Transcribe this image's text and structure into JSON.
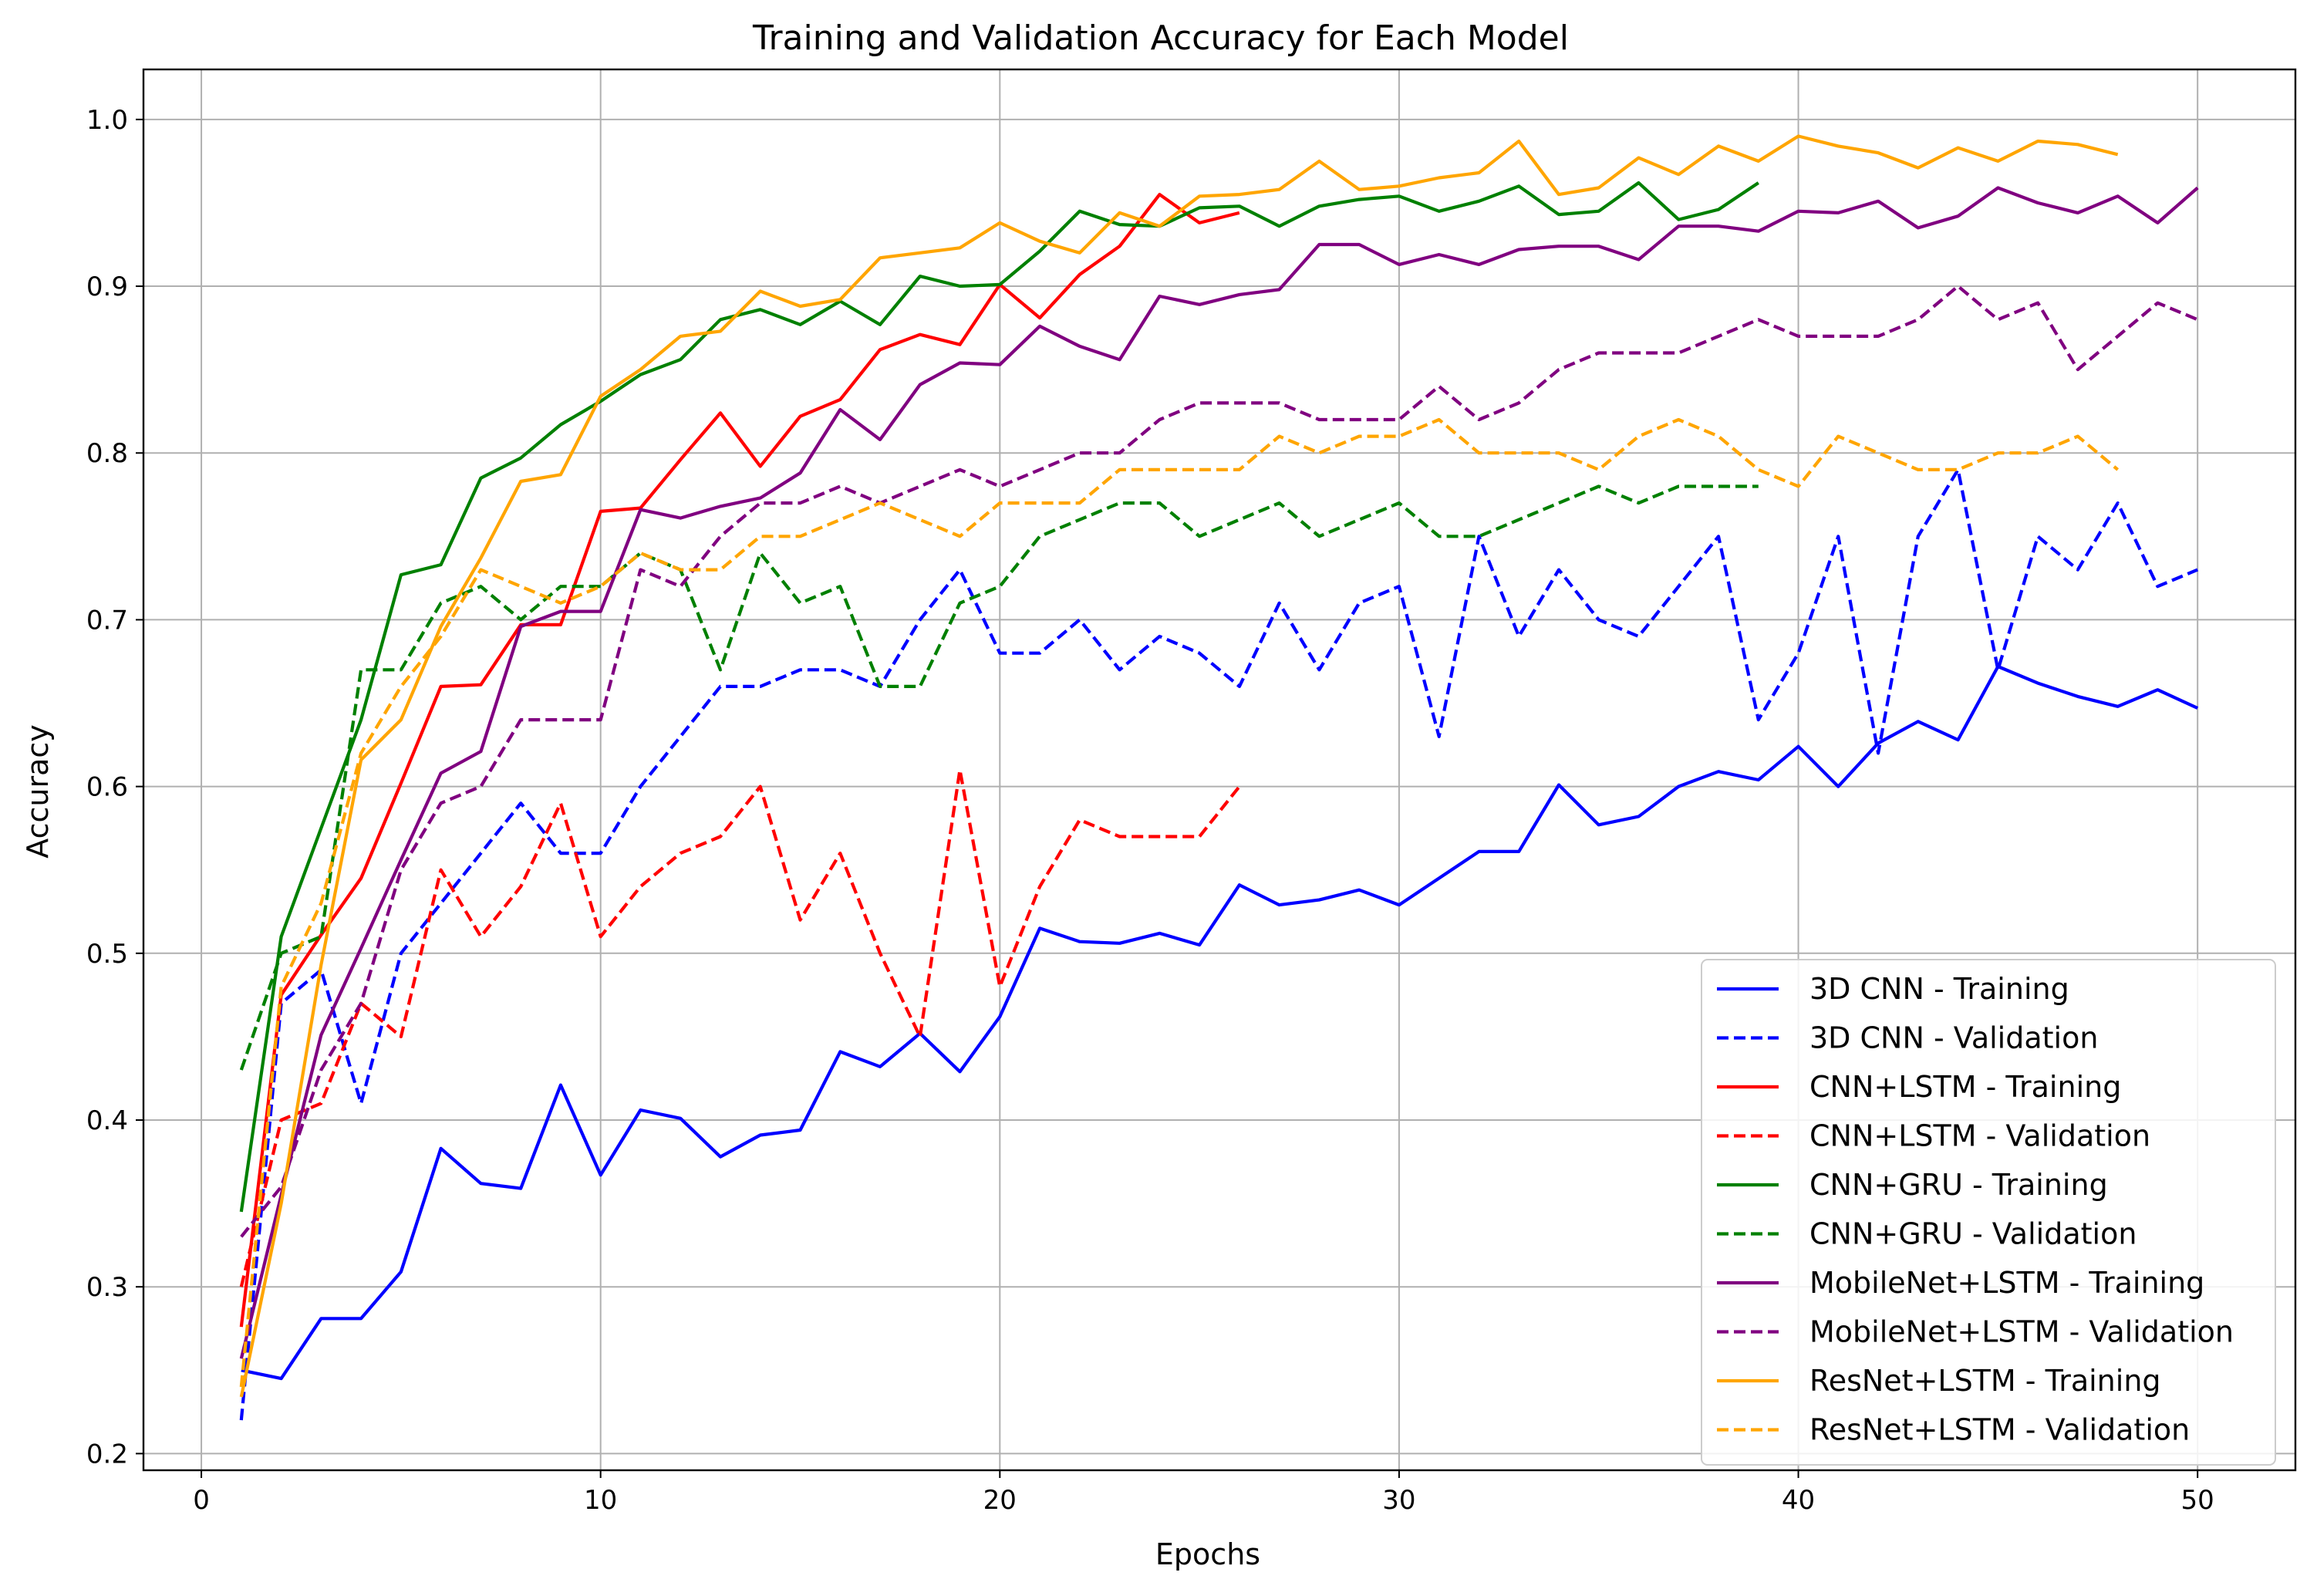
{
  "chart_data": {
    "type": "line",
    "title": "Training and Validation Accuracy for Each Model",
    "xlabel": "Epochs",
    "ylabel": "Accuracy",
    "xlim": [
      -1.45,
      52.45
    ],
    "ylim": [
      0.19,
      1.03
    ],
    "xticks": [
      0,
      10,
      20,
      30,
      40,
      50
    ],
    "yticks": [
      0.2,
      0.3,
      0.4,
      0.5,
      0.6,
      0.7,
      0.8,
      0.9,
      1.0
    ],
    "xtick_labels": [
      "0",
      "10",
      "20",
      "30",
      "40",
      "50"
    ],
    "ytick_labels": [
      "0.2",
      "0.3",
      "0.4",
      "0.5",
      "0.6",
      "0.7",
      "0.8",
      "0.9",
      "1.0"
    ],
    "grid": true,
    "legend_position": "lower-right",
    "series": [
      {
        "name": "3D CNN - Training",
        "color": "#0000ff",
        "style": "solid",
        "values": [
          0.25,
          0.245,
          0.281,
          0.281,
          0.309,
          0.383,
          0.362,
          0.359,
          0.421,
          0.367,
          0.406,
          0.401,
          0.378,
          0.391,
          0.394,
          0.441,
          0.432,
          0.452,
          0.429,
          0.462,
          0.515,
          0.507,
          0.506,
          0.512,
          0.505,
          0.541,
          0.529,
          0.532,
          0.538,
          0.529,
          0.545,
          0.561,
          0.561,
          0.601,
          0.577,
          0.582,
          0.6,
          0.609,
          0.604,
          0.624,
          0.6,
          0.626,
          0.639,
          0.628,
          0.672,
          0.662,
          0.654,
          0.648,
          0.658,
          0.647
        ]
      },
      {
        "name": "3D CNN - Validation",
        "color": "#0000ff",
        "style": "dashed",
        "values": [
          0.22,
          0.47,
          0.49,
          0.41,
          0.5,
          0.53,
          0.56,
          0.59,
          0.56,
          0.56,
          0.6,
          0.63,
          0.66,
          0.66,
          0.67,
          0.67,
          0.66,
          0.7,
          0.73,
          0.68,
          0.68,
          0.7,
          0.67,
          0.69,
          0.68,
          0.66,
          0.71,
          0.67,
          0.71,
          0.72,
          0.63,
          0.75,
          0.69,
          0.73,
          0.7,
          0.69,
          0.72,
          0.75,
          0.64,
          0.68,
          0.75,
          0.62,
          0.75,
          0.79,
          0.67,
          0.75,
          0.73,
          0.77,
          0.72,
          0.73
        ]
      },
      {
        "name": "CNN+LSTM - Training",
        "color": "#ff0000",
        "style": "solid",
        "values": [
          0.276,
          0.475,
          0.511,
          0.545,
          0.602,
          0.66,
          0.661,
          0.697,
          0.697,
          0.765,
          0.767,
          0.796,
          0.824,
          0.792,
          0.822,
          0.832,
          0.862,
          0.871,
          0.865,
          0.901,
          0.881,
          0.907,
          0.924,
          0.955,
          0.938,
          0.944
        ]
      },
      {
        "name": "CNN+LSTM - Validation",
        "color": "#ff0000",
        "style": "dashed",
        "values": [
          0.3,
          0.4,
          0.41,
          0.47,
          0.45,
          0.55,
          0.51,
          0.54,
          0.59,
          0.51,
          0.54,
          0.56,
          0.57,
          0.6,
          0.52,
          0.56,
          0.5,
          0.45,
          0.61,
          0.48,
          0.54,
          0.58,
          0.57,
          0.57,
          0.57,
          0.6
        ]
      },
      {
        "name": "CNN+GRU - Training",
        "color": "#008000",
        "style": "solid",
        "values": [
          0.345,
          0.51,
          0.575,
          0.64,
          0.727,
          0.733,
          0.785,
          0.797,
          0.817,
          0.831,
          0.847,
          0.856,
          0.88,
          0.886,
          0.877,
          0.891,
          0.877,
          0.906,
          0.9,
          0.901,
          0.921,
          0.945,
          0.937,
          0.936,
          0.947,
          0.948,
          0.936,
          0.948,
          0.952,
          0.954,
          0.945,
          0.951,
          0.96,
          0.943,
          0.945,
          0.962,
          0.94,
          0.946,
          0.962
        ]
      },
      {
        "name": "CNN+GRU - Validation",
        "color": "#008000",
        "style": "dashed",
        "values": [
          0.43,
          0.5,
          0.51,
          0.67,
          0.67,
          0.71,
          0.72,
          0.7,
          0.72,
          0.72,
          0.74,
          0.73,
          0.67,
          0.74,
          0.71,
          0.72,
          0.66,
          0.66,
          0.71,
          0.72,
          0.75,
          0.76,
          0.77,
          0.77,
          0.75,
          0.76,
          0.77,
          0.75,
          0.76,
          0.77,
          0.75,
          0.75,
          0.76,
          0.77,
          0.78,
          0.77,
          0.78,
          0.78,
          0.78
        ]
      },
      {
        "name": "MobileNet+LSTM - Training",
        "color": "#800080",
        "style": "solid",
        "values": [
          0.257,
          0.355,
          0.451,
          0.503,
          0.556,
          0.608,
          0.621,
          0.696,
          0.705,
          0.705,
          0.766,
          0.761,
          0.768,
          0.773,
          0.788,
          0.826,
          0.808,
          0.841,
          0.854,
          0.853,
          0.876,
          0.864,
          0.856,
          0.894,
          0.889,
          0.895,
          0.898,
          0.925,
          0.925,
          0.913,
          0.919,
          0.913,
          0.922,
          0.924,
          0.924,
          0.916,
          0.936,
          0.936,
          0.933,
          0.945,
          0.944,
          0.951,
          0.935,
          0.942,
          0.959,
          0.95,
          0.944,
          0.954,
          0.938,
          0.959
        ]
      },
      {
        "name": "MobileNet+LSTM - Validation",
        "color": "#800080",
        "style": "dashed",
        "values": [
          0.33,
          0.36,
          0.43,
          0.47,
          0.55,
          0.59,
          0.6,
          0.64,
          0.64,
          0.64,
          0.73,
          0.72,
          0.75,
          0.77,
          0.77,
          0.78,
          0.77,
          0.78,
          0.79,
          0.78,
          0.79,
          0.8,
          0.8,
          0.82,
          0.83,
          0.83,
          0.83,
          0.82,
          0.82,
          0.82,
          0.84,
          0.82,
          0.83,
          0.85,
          0.86,
          0.86,
          0.86,
          0.87,
          0.88,
          0.87,
          0.87,
          0.87,
          0.88,
          0.9,
          0.88,
          0.89,
          0.85,
          0.87,
          0.89,
          0.88
        ]
      },
      {
        "name": "ResNet+LSTM - Training",
        "color": "#ffa500",
        "style": "solid",
        "values": [
          0.234,
          0.35,
          0.493,
          0.616,
          0.64,
          0.696,
          0.737,
          0.783,
          0.787,
          0.834,
          0.85,
          0.87,
          0.873,
          0.897,
          0.888,
          0.892,
          0.917,
          0.92,
          0.923,
          0.938,
          0.927,
          0.92,
          0.944,
          0.936,
          0.954,
          0.955,
          0.958,
          0.975,
          0.958,
          0.96,
          0.965,
          0.968,
          0.987,
          0.955,
          0.959,
          0.977,
          0.967,
          0.984,
          0.975,
          0.99,
          0.984,
          0.98,
          0.971,
          0.983,
          0.975,
          0.987,
          0.985,
          0.979
        ]
      },
      {
        "name": "ResNet+LSTM - Validation",
        "color": "#ffa500",
        "style": "dashed",
        "values": [
          0.24,
          0.48,
          0.53,
          0.62,
          0.66,
          0.69,
          0.73,
          0.72,
          0.71,
          0.72,
          0.74,
          0.73,
          0.73,
          0.75,
          0.75,
          0.76,
          0.77,
          0.76,
          0.75,
          0.77,
          0.77,
          0.77,
          0.79,
          0.79,
          0.79,
          0.79,
          0.81,
          0.8,
          0.81,
          0.81,
          0.82,
          0.8,
          0.8,
          0.8,
          0.79,
          0.81,
          0.82,
          0.81,
          0.79,
          0.78,
          0.81,
          0.8,
          0.79,
          0.79,
          0.8,
          0.8,
          0.81,
          0.79
        ]
      }
    ]
  }
}
